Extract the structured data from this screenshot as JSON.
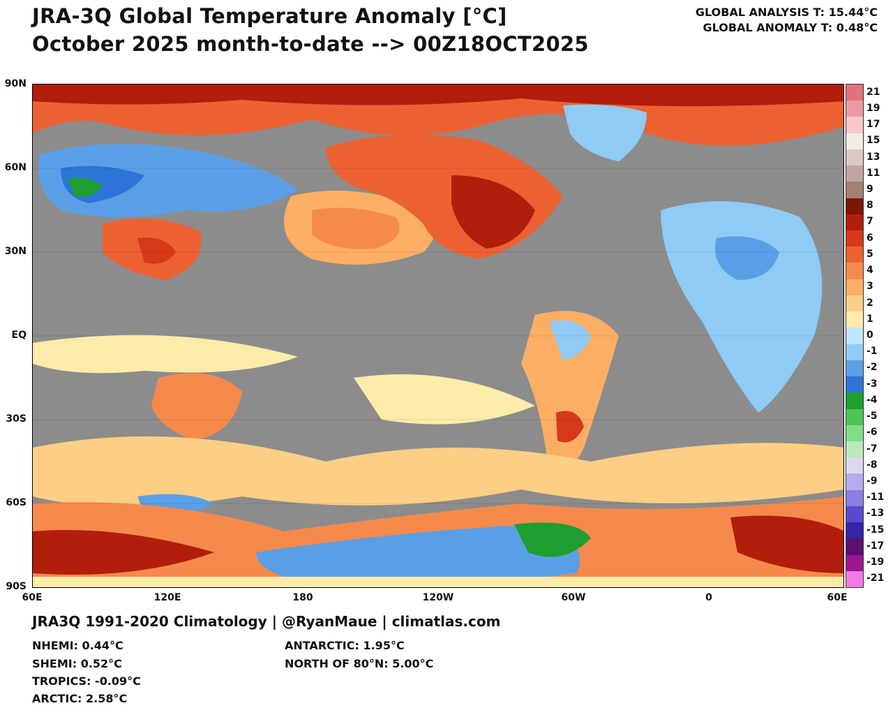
{
  "header": {
    "title_line1": "JRA-3Q Global Temperature Anomaly [°C]",
    "title_line2": "October 2025 month-to-date --> 00Z18OCT2025",
    "global_analysis": "GLOBAL ANALYSIS T: 15.44°C",
    "global_anomaly": "GLOBAL ANOMALY T: 0.48°C"
  },
  "map": {
    "lat_labels": [
      "90N",
      "60N",
      "30N",
      "EQ",
      "30S",
      "60S",
      "90S"
    ],
    "lon_labels": [
      "60E",
      "120E",
      "180",
      "120W",
      "60W",
      "0",
      "60E"
    ],
    "background_color": "#8c8c8c",
    "land_outline_color": "#1a1a1a"
  },
  "colorbar": {
    "labels": [
      "21",
      "19",
      "17",
      "15",
      "13",
      "11",
      "9",
      "8",
      "7",
      "6",
      "5",
      "4",
      "3",
      "2",
      "1",
      "0",
      "-1",
      "-2",
      "-3",
      "-4",
      "-5",
      "-6",
      "-7",
      "-8",
      "-9",
      "-11",
      "-13",
      "-15",
      "-17",
      "-19",
      "-21"
    ],
    "colors": [
      "#e0737b",
      "#ec9aa2",
      "#f6c8ca",
      "#f4ebe7",
      "#dac9c5",
      "#c2a59e",
      "#a47f73",
      "#7d1404",
      "#b11e0c",
      "#d6381a",
      "#ec6132",
      "#f68a4c",
      "#fbae64",
      "#fdce85",
      "#fdebaa",
      "#8c8c8c",
      "#bfe6fb",
      "#8fcbf4",
      "#5a9fe6",
      "#2f73d9",
      "#1e9e2e",
      "#4cc455",
      "#80de86",
      "#bde8bc",
      "#dcd8f4",
      "#b4acec",
      "#8a7fe0",
      "#5949cc",
      "#3324aa",
      "#5a1070",
      "#9a1890",
      "#cc2ec8",
      "#f07ae6"
    ]
  },
  "footer": {
    "source_line": "JRA3Q 1991-2020 Climatology | @RyanMaue | climatlas.com",
    "nhemi": "NHEMI: 0.44°C",
    "shemi": "SHEMI: 0.52°C",
    "tropics": "TROPICS: -0.09°C",
    "arctic": "ARCTIC: 2.58°C",
    "antarctic": "ANTARCTIC: 1.95°C",
    "north_of_80": "NORTH OF 80°N: 5.00°C"
  }
}
